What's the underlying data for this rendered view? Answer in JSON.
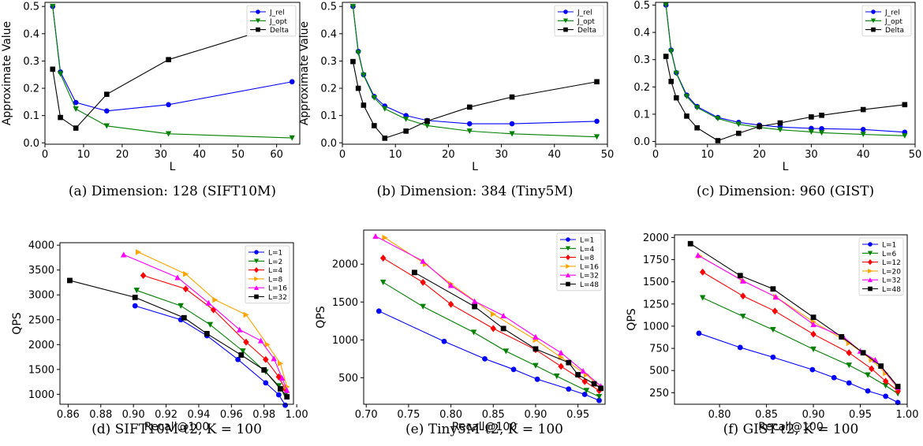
{
  "chart_data": [
    {
      "type": "line",
      "caption": "(a) Dimension: 128 (SIFT10M)",
      "xlabel": "L",
      "ylabel": "Approximate Value",
      "xlim": [
        0,
        66
      ],
      "ylim": [
        -0.005,
        0.515
      ],
      "xticks": [
        0,
        10,
        20,
        30,
        40,
        50,
        60
      ],
      "yticks": [
        0.0,
        0.1,
        0.2,
        0.3,
        0.4,
        0.5
      ],
      "ytick_labels": [
        "0.0",
        "0.1",
        "0.2",
        "0.3",
        "0.4",
        "0.5"
      ],
      "legend_position": "top-right",
      "series": [
        {
          "name": "J_rel",
          "color": "#0000ff",
          "marker": "circle",
          "x": [
            2,
            4,
            8,
            16,
            32,
            64
          ],
          "y": [
            0.5,
            0.26,
            0.148,
            0.117,
            0.14,
            0.224
          ]
        },
        {
          "name": "J_opt",
          "color": "#008000",
          "marker": "triangle-down",
          "x": [
            2,
            4,
            8,
            16,
            32,
            64
          ],
          "y": [
            0.5,
            0.253,
            0.124,
            0.062,
            0.033,
            0.018
          ]
        },
        {
          "name": "Delta",
          "color": "#000000",
          "marker": "square",
          "x": [
            2,
            4,
            8,
            16,
            32,
            64
          ],
          "y": [
            0.27,
            0.093,
            0.054,
            0.178,
            0.305,
            0.444
          ]
        }
      ]
    },
    {
      "type": "line",
      "caption": "(b) Dimension: 384 (Tiny5M)",
      "xlabel": "L",
      "ylabel": "Approximate Value",
      "xlim": [
        0,
        50
      ],
      "ylim": [
        -0.005,
        0.515
      ],
      "xticks": [
        0,
        10,
        20,
        30,
        40,
        50
      ],
      "yticks": [
        0.0,
        0.1,
        0.2,
        0.3,
        0.4,
        0.5
      ],
      "ytick_labels": [
        "0.0",
        "0.1",
        "0.2",
        "0.3",
        "0.4",
        "0.5"
      ],
      "legend_position": "top-right",
      "series": [
        {
          "name": "J_rel",
          "color": "#0000ff",
          "marker": "circle",
          "x": [
            2,
            3,
            4,
            6,
            8,
            12,
            16,
            24,
            32,
            48
          ],
          "y": [
            0.5,
            0.335,
            0.25,
            0.17,
            0.135,
            0.1,
            0.082,
            0.07,
            0.07,
            0.079
          ]
        },
        {
          "name": "J_opt",
          "color": "#008000",
          "marker": "triangle-down",
          "x": [
            2,
            3,
            4,
            6,
            8,
            12,
            16,
            24,
            32,
            48
          ],
          "y": [
            0.5,
            0.33,
            0.248,
            0.165,
            0.125,
            0.087,
            0.063,
            0.043,
            0.033,
            0.022
          ]
        },
        {
          "name": "Delta",
          "color": "#000000",
          "marker": "square",
          "x": [
            2,
            3,
            4,
            6,
            8,
            12,
            16,
            24,
            32,
            48
          ],
          "y": [
            0.298,
            0.2,
            0.138,
            0.063,
            0.017,
            0.043,
            0.08,
            0.131,
            0.168,
            0.224
          ]
        }
      ]
    },
    {
      "type": "line",
      "caption": "(c) Dimension: 960 (GIST)",
      "xlabel": "L",
      "ylabel": "",
      "xlim": [
        0,
        50
      ],
      "ylim": [
        -0.01,
        0.51
      ],
      "xticks": [
        0,
        10,
        20,
        30,
        40,
        50
      ],
      "yticks": [
        0.0,
        0.1,
        0.2,
        0.3,
        0.4,
        0.5
      ],
      "ytick_labels": [
        "0.0",
        "0.1",
        "0.2",
        "0.3",
        "0.4",
        "0.5"
      ],
      "legend_position": "top-right",
      "series": [
        {
          "name": "J_rel",
          "color": "#0000ff",
          "marker": "circle",
          "x": [
            2,
            3,
            4,
            6,
            8,
            12,
            16,
            20,
            24,
            30,
            32,
            40,
            48
          ],
          "y": [
            0.5,
            0.335,
            0.252,
            0.17,
            0.128,
            0.088,
            0.07,
            0.06,
            0.053,
            0.048,
            0.047,
            0.044,
            0.034
          ]
        },
        {
          "name": "J_opt",
          "color": "#008000",
          "marker": "triangle-down",
          "x": [
            2,
            3,
            4,
            6,
            8,
            12,
            16,
            20,
            24,
            30,
            32,
            40,
            48
          ],
          "y": [
            0.5,
            0.33,
            0.25,
            0.165,
            0.124,
            0.084,
            0.063,
            0.052,
            0.043,
            0.035,
            0.032,
            0.026,
            0.021
          ]
        },
        {
          "name": "Delta",
          "color": "#000000",
          "marker": "square",
          "x": [
            2,
            3,
            4,
            6,
            8,
            12,
            16,
            20,
            24,
            30,
            32,
            40,
            48
          ],
          "y": [
            0.312,
            0.22,
            0.16,
            0.093,
            0.05,
            0.003,
            0.03,
            0.055,
            0.068,
            0.09,
            0.096,
            0.117,
            0.135
          ]
        }
      ]
    },
    {
      "type": "line",
      "caption": "(d) SIFT10M-ℓ2, K = 100",
      "xlabel": "Recall@100",
      "ylabel": "QPS",
      "xlim": [
        0.855,
        0.998
      ],
      "ylim": [
        800,
        4050
      ],
      "xticks": [
        0.86,
        0.88,
        0.9,
        0.92,
        0.94,
        0.96,
        0.98,
        1.0
      ],
      "xtick_labels": [
        "0.86",
        "0.88",
        "0.90",
        "0.92",
        "0.94",
        "0.96",
        "0.98",
        "1.00"
      ],
      "yticks": [
        1000,
        1500,
        2000,
        2500,
        3000,
        3500,
        4000
      ],
      "legend_position": "top-right",
      "series": [
        {
          "name": "L=1",
          "color": "#0000ff",
          "marker": "circle",
          "x": [
            0.901,
            0.929,
            0.945,
            0.964,
            0.981,
            0.989,
            0.993
          ],
          "y": [
            2780,
            2500,
            2180,
            1700,
            1230,
            990,
            780
          ]
        },
        {
          "name": "L=2",
          "color": "#008000",
          "marker": "triangle-down",
          "x": [
            0.902,
            0.929,
            0.947,
            0.967,
            0.981,
            0.989,
            0.993
          ],
          "y": [
            3090,
            2780,
            2400,
            1870,
            1450,
            1170,
            980
          ]
        },
        {
          "name": "L=4",
          "color": "#ff0000",
          "marker": "diamond",
          "x": [
            0.906,
            0.932,
            0.949,
            0.969,
            0.981,
            0.989,
            0.993
          ],
          "y": [
            3390,
            3120,
            2700,
            2050,
            1700,
            1350,
            1100
          ]
        },
        {
          "name": "L=8",
          "color": "#ffa500",
          "marker": "triangle-right",
          "x": [
            0.903,
            0.932,
            0.95,
            0.969,
            0.982,
            0.99,
            0.994
          ],
          "y": [
            3860,
            3420,
            2900,
            2600,
            2000,
            1620,
            1150
          ]
        },
        {
          "name": "L=16",
          "color": "#ff00ff",
          "marker": "triangle-up",
          "x": [
            0.894,
            0.927,
            0.946,
            0.965,
            0.978,
            0.986,
            0.991,
            0.994
          ],
          "y": [
            3810,
            3350,
            2840,
            2300,
            2080,
            1720,
            1330,
            1080
          ]
        },
        {
          "name": "L=32",
          "color": "#000000",
          "marker": "square",
          "x": [
            0.861,
            0.901,
            0.931,
            0.945,
            0.966,
            0.98,
            0.99,
            0.994
          ],
          "y": [
            3290,
            2950,
            2540,
            2220,
            1790,
            1490,
            1110,
            950
          ]
        }
      ]
    },
    {
      "type": "line",
      "caption": "(e) Tiny5M-ℓ2, K = 100",
      "xlabel": "Recall@100",
      "ylabel": "QPS",
      "xlim": [
        0.697,
        0.982
      ],
      "ylim": [
        150,
        2450
      ],
      "xticks": [
        0.7,
        0.75,
        0.8,
        0.85,
        0.9,
        0.95
      ],
      "xtick_labels": [
        "0.70",
        "0.75",
        "0.80",
        "0.85",
        "0.90",
        "0.95"
      ],
      "yticks": [
        500,
        1000,
        1500,
        2000
      ],
      "legend_position": "top-right",
      "series": [
        {
          "name": "L=1",
          "color": "#0000ff",
          "marker": "circle",
          "x": [
            0.715,
            0.792,
            0.84,
            0.874,
            0.902,
            0.939,
            0.958,
            0.975
          ],
          "y": [
            1380,
            980,
            750,
            610,
            480,
            350,
            280,
            200
          ]
        },
        {
          "name": "L=4",
          "color": "#008000",
          "marker": "triangle-down",
          "x": [
            0.72,
            0.767,
            0.827,
            0.865,
            0.9,
            0.925,
            0.96,
            0.975
          ],
          "y": [
            1760,
            1440,
            1100,
            850,
            660,
            520,
            330,
            250
          ]
        },
        {
          "name": "L=8",
          "color": "#ff0000",
          "marker": "diamond",
          "x": [
            0.72,
            0.767,
            0.8,
            0.85,
            0.9,
            0.93,
            0.958,
            0.975
          ],
          "y": [
            2080,
            1760,
            1470,
            1150,
            870,
            650,
            450,
            330
          ]
        },
        {
          "name": "L=16",
          "color": "#ffa500",
          "marker": "triangle-right",
          "x": [
            0.722,
            0.77,
            0.8,
            0.85,
            0.9,
            0.93,
            0.96,
            0.977
          ],
          "y": [
            2350,
            2000,
            1740,
            1340,
            1000,
            770,
            540,
            360
          ]
        },
        {
          "name": "L=32",
          "color": "#ff00ff",
          "marker": "triangle-up",
          "x": [
            0.711,
            0.767,
            0.8,
            0.828,
            0.862,
            0.9,
            0.93,
            0.956,
            0.977
          ],
          "y": [
            2370,
            2040,
            1720,
            1510,
            1320,
            1040,
            830,
            590,
            390
          ]
        },
        {
          "name": "L=48",
          "color": "#000000",
          "marker": "square",
          "x": [
            0.757,
            0.828,
            0.862,
            0.9,
            0.939,
            0.95,
            0.969,
            0.977
          ],
          "y": [
            1890,
            1440,
            1150,
            880,
            700,
            540,
            420,
            360
          ]
        }
      ]
    },
    {
      "type": "line",
      "caption": "(f) GIST-ℓ2, K = 100",
      "xlabel": "Recall@100",
      "ylabel": "QPS",
      "xlim": [
        0.752,
        1.0
      ],
      "ylim": [
        120,
        2030
      ],
      "xticks": [
        0.8,
        0.85,
        0.9,
        0.95,
        1.0
      ],
      "xtick_labels": [
        "0.80",
        "0.85",
        "0.90",
        "0.95",
        "1.00"
      ],
      "yticks": [
        250,
        500,
        750,
        1000,
        1250,
        1500,
        1750,
        2000
      ],
      "legend_position": "top-right",
      "series": [
        {
          "name": "L=1",
          "color": "#0000ff",
          "marker": "circle",
          "x": [
            0.778,
            0.822,
            0.857,
            0.899,
            0.922,
            0.938,
            0.958,
            0.977,
            0.99
          ],
          "y": [
            920,
            760,
            650,
            510,
            420,
            360,
            270,
            210,
            140
          ]
        },
        {
          "name": "L=6",
          "color": "#008000",
          "marker": "triangle-down",
          "x": [
            0.782,
            0.825,
            0.857,
            0.9,
            0.938,
            0.958,
            0.977,
            0.99
          ],
          "y": [
            1320,
            1110,
            960,
            740,
            560,
            450,
            330,
            240
          ]
        },
        {
          "name": "L=12",
          "color": "#ff0000",
          "marker": "diamond",
          "x": [
            0.782,
            0.825,
            0.859,
            0.9,
            0.938,
            0.962,
            0.977,
            0.99
          ],
          "y": [
            1610,
            1340,
            1170,
            910,
            700,
            520,
            380,
            270
          ]
        },
        {
          "name": "L=20",
          "color": "#ffa500",
          "marker": "triangle-right",
          "x": [
            0.779,
            0.825,
            0.86,
            0.9,
            0.938,
            0.962,
            0.977,
            0.99
          ],
          "y": [
            1790,
            1510,
            1330,
            1050,
            810,
            620,
            470,
            300
          ]
        },
        {
          "name": "L=32",
          "color": "#ff00ff",
          "marker": "triangle-up",
          "x": [
            0.777,
            0.825,
            0.86,
            0.9,
            0.932,
            0.95,
            0.966,
            0.99
          ],
          "y": [
            1800,
            1510,
            1330,
            1020,
            880,
            720,
            620,
            310
          ]
        },
        {
          "name": "L=48",
          "color": "#000000",
          "marker": "square",
          "x": [
            0.769,
            0.822,
            0.857,
            0.9,
            0.93,
            0.953,
            0.972,
            0.99
          ],
          "y": [
            1930,
            1570,
            1420,
            1100,
            880,
            700,
            550,
            320
          ]
        }
      ]
    }
  ]
}
